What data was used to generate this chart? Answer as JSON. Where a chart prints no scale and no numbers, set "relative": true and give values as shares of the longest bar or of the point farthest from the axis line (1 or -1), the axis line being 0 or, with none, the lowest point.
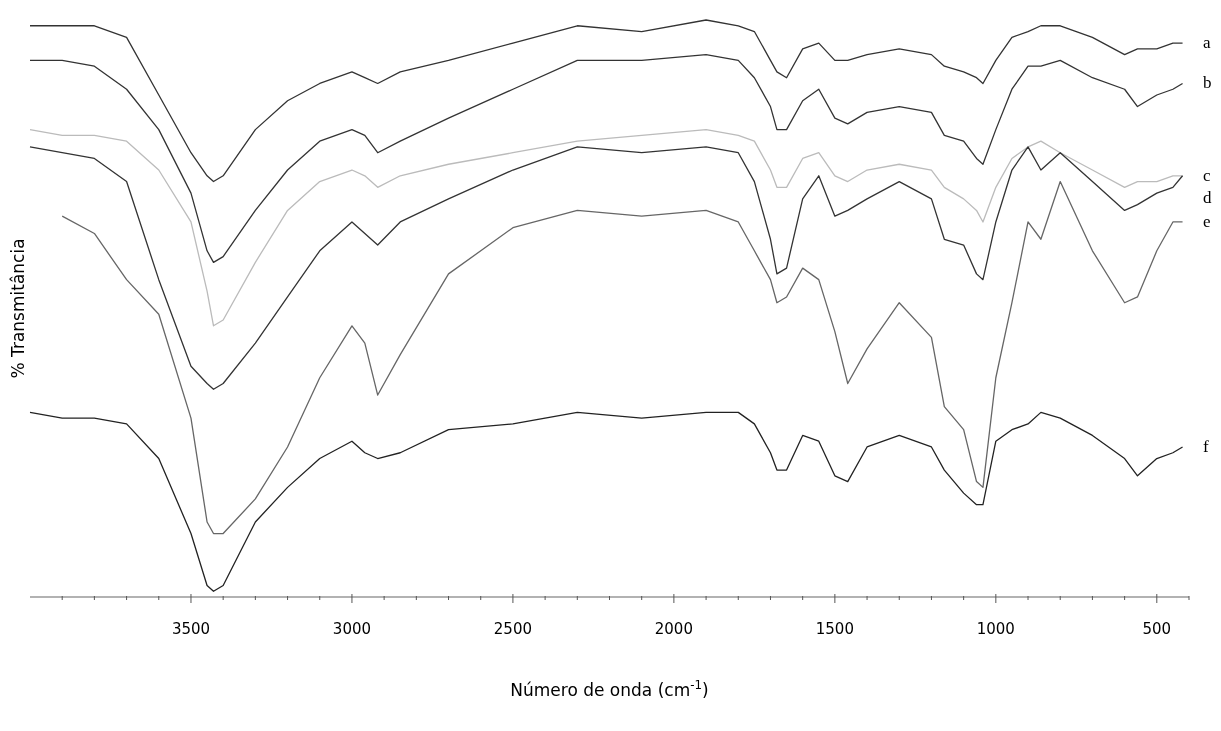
{
  "chart_data": {
    "type": "line",
    "relative": true,
    "tick_labels": "x",
    "marker": "none",
    "line_style": "solid",
    "xlabel": "Número de onda (cm$^{-1}$)",
    "ylabel": "% Transmitância",
    "xlim": [
      4000,
      400
    ],
    "xticks": [
      {
        "value": 3900,
        "label": null
      },
      {
        "value": 3800,
        "label": null
      },
      {
        "value": 3700,
        "label": null
      },
      {
        "value": 3600,
        "label": null
      },
      3500,
      {
        "value": 3400,
        "label": null
      },
      {
        "value": 3300,
        "label": null
      },
      {
        "value": 3200,
        "label": null
      },
      {
        "value": 3100,
        "label": null
      },
      3000,
      {
        "value": 2900,
        "label": null
      },
      {
        "value": 2800,
        "label": null
      },
      {
        "value": 2700,
        "label": null
      },
      {
        "value": 2600,
        "label": null
      },
      2500,
      {
        "value": 2400,
        "label": null
      },
      {
        "value": 2300,
        "label": null
      },
      {
        "value": 2200,
        "label": null
      },
      {
        "value": 2100,
        "label": null
      },
      2000,
      {
        "value": 1900,
        "label": null
      },
      {
        "value": 1800,
        "label": null
      },
      {
        "value": 1700,
        "label": null
      },
      {
        "value": 1600,
        "label": null
      },
      1500,
      {
        "value": 1400,
        "label": null
      },
      {
        "value": 1300,
        "label": null
      },
      {
        "value": 1200,
        "label": null
      },
      {
        "value": 1100,
        "label": null
      },
      1000,
      {
        "value": 900,
        "label": null
      },
      {
        "value": 800,
        "label": null
      },
      {
        "value": 700,
        "label": null
      },
      {
        "value": 600,
        "label": null
      },
      500,
      {
        "value": 400,
        "label": null
      }
    ],
    "x": [
      4000,
      3900,
      3800,
      3700,
      3600,
      3500,
      3450,
      3430,
      3400,
      3300,
      3200,
      3100,
      3000,
      2960,
      2920,
      2850,
      2700,
      2500,
      2300,
      2100,
      1900,
      1800,
      1750,
      1700,
      1680,
      1650,
      1600,
      1550,
      1500,
      1460,
      1400,
      1300,
      1200,
      1160,
      1100,
      1060,
      1040,
      1000,
      950,
      900,
      860,
      800,
      700,
      600,
      560,
      500,
      450,
      420
    ],
    "series": [
      {
        "name": "a",
        "color": "#333333",
        "values": [
          0.99,
          0.99,
          0.99,
          0.97,
          0.87,
          0.77,
          0.73,
          0.72,
          0.73,
          0.81,
          0.86,
          0.89,
          0.91,
          0.9,
          0.89,
          0.91,
          0.93,
          0.96,
          0.99,
          0.98,
          1,
          0.99,
          0.98,
          0.93,
          0.91,
          0.9,
          0.95,
          0.96,
          0.93,
          0.93,
          0.94,
          0.95,
          0.94,
          0.92,
          0.91,
          0.9,
          0.89,
          0.93,
          0.97,
          0.98,
          0.99,
          0.99,
          0.97,
          0.94,
          0.95,
          0.95,
          0.96,
          0.96
        ]
      },
      {
        "name": "b",
        "color": "#333333",
        "values": [
          0.93,
          0.93,
          0.92,
          0.88,
          0.81,
          0.7,
          0.6,
          0.58,
          0.59,
          0.67,
          0.74,
          0.79,
          0.81,
          0.8,
          0.77,
          0.79,
          0.83,
          0.88,
          0.93,
          0.93,
          0.94,
          0.93,
          0.9,
          0.85,
          0.81,
          0.81,
          0.86,
          0.88,
          0.83,
          0.82,
          0.84,
          0.85,
          0.84,
          0.8,
          0.79,
          0.76,
          0.75,
          0.81,
          0.88,
          0.92,
          0.92,
          0.93,
          0.9,
          0.88,
          0.85,
          0.87,
          0.88,
          0.89
        ]
      },
      {
        "name": "c",
        "color": "#bbbbbb",
        "values": [
          0.81,
          0.8,
          0.8,
          0.79,
          0.74,
          0.65,
          0.53,
          0.47,
          0.48,
          0.58,
          0.67,
          0.72,
          0.74,
          0.73,
          0.71,
          0.73,
          0.75,
          0.77,
          0.79,
          0.8,
          0.81,
          0.8,
          0.79,
          0.74,
          0.71,
          0.71,
          0.76,
          0.77,
          0.73,
          0.72,
          0.74,
          0.75,
          0.74,
          0.71,
          0.69,
          0.67,
          0.65,
          0.71,
          0.76,
          0.78,
          0.79,
          0.77,
          0.74,
          0.71,
          0.72,
          0.72,
          0.73,
          0.73
        ]
      },
      {
        "name": "d",
        "color": "#333333",
        "values": [
          0.78,
          0.77,
          0.76,
          0.72,
          0.55,
          0.4,
          0.37,
          0.36,
          0.37,
          0.44,
          0.52,
          0.6,
          0.65,
          0.63,
          0.61,
          0.65,
          0.69,
          0.74,
          0.78,
          0.77,
          0.78,
          0.77,
          0.72,
          0.62,
          0.56,
          0.57,
          0.69,
          0.73,
          0.66,
          0.67,
          0.69,
          0.72,
          0.69,
          0.62,
          0.61,
          0.56,
          0.55,
          0.65,
          0.74,
          0.78,
          0.74,
          0.77,
          0.72,
          0.67,
          0.68,
          0.7,
          0.71,
          0.73
        ]
      },
      {
        "name": "e",
        "color": "#666666",
        "values": [
          null,
          0.66,
          0.63,
          0.55,
          0.49,
          0.31,
          0.13,
          0.11,
          0.11,
          0.17,
          0.26,
          0.38,
          0.47,
          0.44,
          0.35,
          0.42,
          0.56,
          0.64,
          0.67,
          0.66,
          0.67,
          0.65,
          0.6,
          0.55,
          0.51,
          0.52,
          0.57,
          0.55,
          0.46,
          0.37,
          0.43,
          0.51,
          0.45,
          0.33,
          0.29,
          0.2,
          0.19,
          0.38,
          0.51,
          0.65,
          0.62,
          0.72,
          0.6,
          0.51,
          0.52,
          0.6,
          0.65,
          0.65
        ]
      },
      {
        "name": "f",
        "color": "#222222",
        "values": [
          0.32,
          0.31,
          0.31,
          0.3,
          0.24,
          0.11,
          0.02,
          0.01,
          0.02,
          0.13,
          0.19,
          0.24,
          0.27,
          0.25,
          0.24,
          0.25,
          0.29,
          0.3,
          0.32,
          0.31,
          0.32,
          0.32,
          0.3,
          0.25,
          0.22,
          0.22,
          0.28,
          0.27,
          0.21,
          0.2,
          0.26,
          0.28,
          0.26,
          0.22,
          0.18,
          0.16,
          0.16,
          0.27,
          0.29,
          0.3,
          0.32,
          0.31,
          0.28,
          0.24,
          0.21,
          0.24,
          0.25,
          0.26
        ]
      }
    ]
  }
}
